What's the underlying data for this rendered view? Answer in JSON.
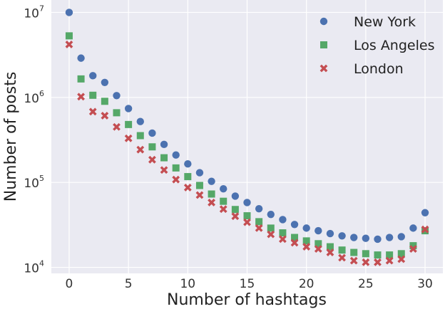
{
  "chart_data": {
    "type": "scatter",
    "title": "",
    "xlabel": "Number of hashtags",
    "ylabel": "Number of posts",
    "xlim": [
      -1.5,
      31.5
    ],
    "ylim": [
      8500,
      14000000
    ],
    "yscale": "log",
    "x_ticks": [
      0,
      5,
      10,
      15,
      20,
      25,
      30
    ],
    "y_ticks": [
      {
        "value": 10000,
        "base": "10",
        "exp": "4"
      },
      {
        "value": 100000,
        "base": "10",
        "exp": "5"
      },
      {
        "value": 1000000,
        "base": "10",
        "exp": "6"
      },
      {
        "value": 10000000,
        "base": "10",
        "exp": "7"
      }
    ],
    "grid": true,
    "legend_position": "top-right",
    "x": [
      0,
      1,
      2,
      3,
      4,
      5,
      6,
      7,
      8,
      9,
      10,
      11,
      12,
      13,
      14,
      15,
      16,
      17,
      18,
      19,
      20,
      21,
      22,
      23,
      24,
      25,
      26,
      27,
      28,
      29,
      30
    ],
    "series": [
      {
        "name": "New York",
        "marker": "circle",
        "color": "#4c72b0",
        "values": [
          10000000,
          2900000,
          1800000,
          1500000,
          1050000,
          740000,
          520000,
          380000,
          280000,
          210000,
          165000,
          130000,
          103000,
          84000,
          69000,
          58000,
          49000,
          42000,
          36500,
          32000,
          29000,
          27000,
          25000,
          23500,
          22500,
          22000,
          21500,
          22500,
          23000,
          29000,
          44000
        ]
      },
      {
        "name": "Los Angeles",
        "marker": "square",
        "color": "#55a868",
        "values": [
          5300000,
          1650000,
          1060000,
          900000,
          660000,
          480000,
          355000,
          262000,
          195000,
          148000,
          117000,
          92000,
          73000,
          60000,
          48000,
          40500,
          34500,
          29000,
          25500,
          22500,
          20500,
          19000,
          17500,
          16000,
          15000,
          14500,
          14000,
          14000,
          14500,
          18000,
          27000
        ]
      },
      {
        "name": "London",
        "marker": "x",
        "color": "#c44e52",
        "values": [
          4200000,
          1020000,
          680000,
          610000,
          450000,
          330000,
          243000,
          185000,
          140000,
          108000,
          87000,
          71000,
          58000,
          48500,
          40000,
          34000,
          29000,
          24500,
          21500,
          19500,
          17500,
          16500,
          15000,
          13000,
          12000,
          11500,
          11500,
          12000,
          12500,
          16500,
          28000
        ]
      }
    ]
  }
}
